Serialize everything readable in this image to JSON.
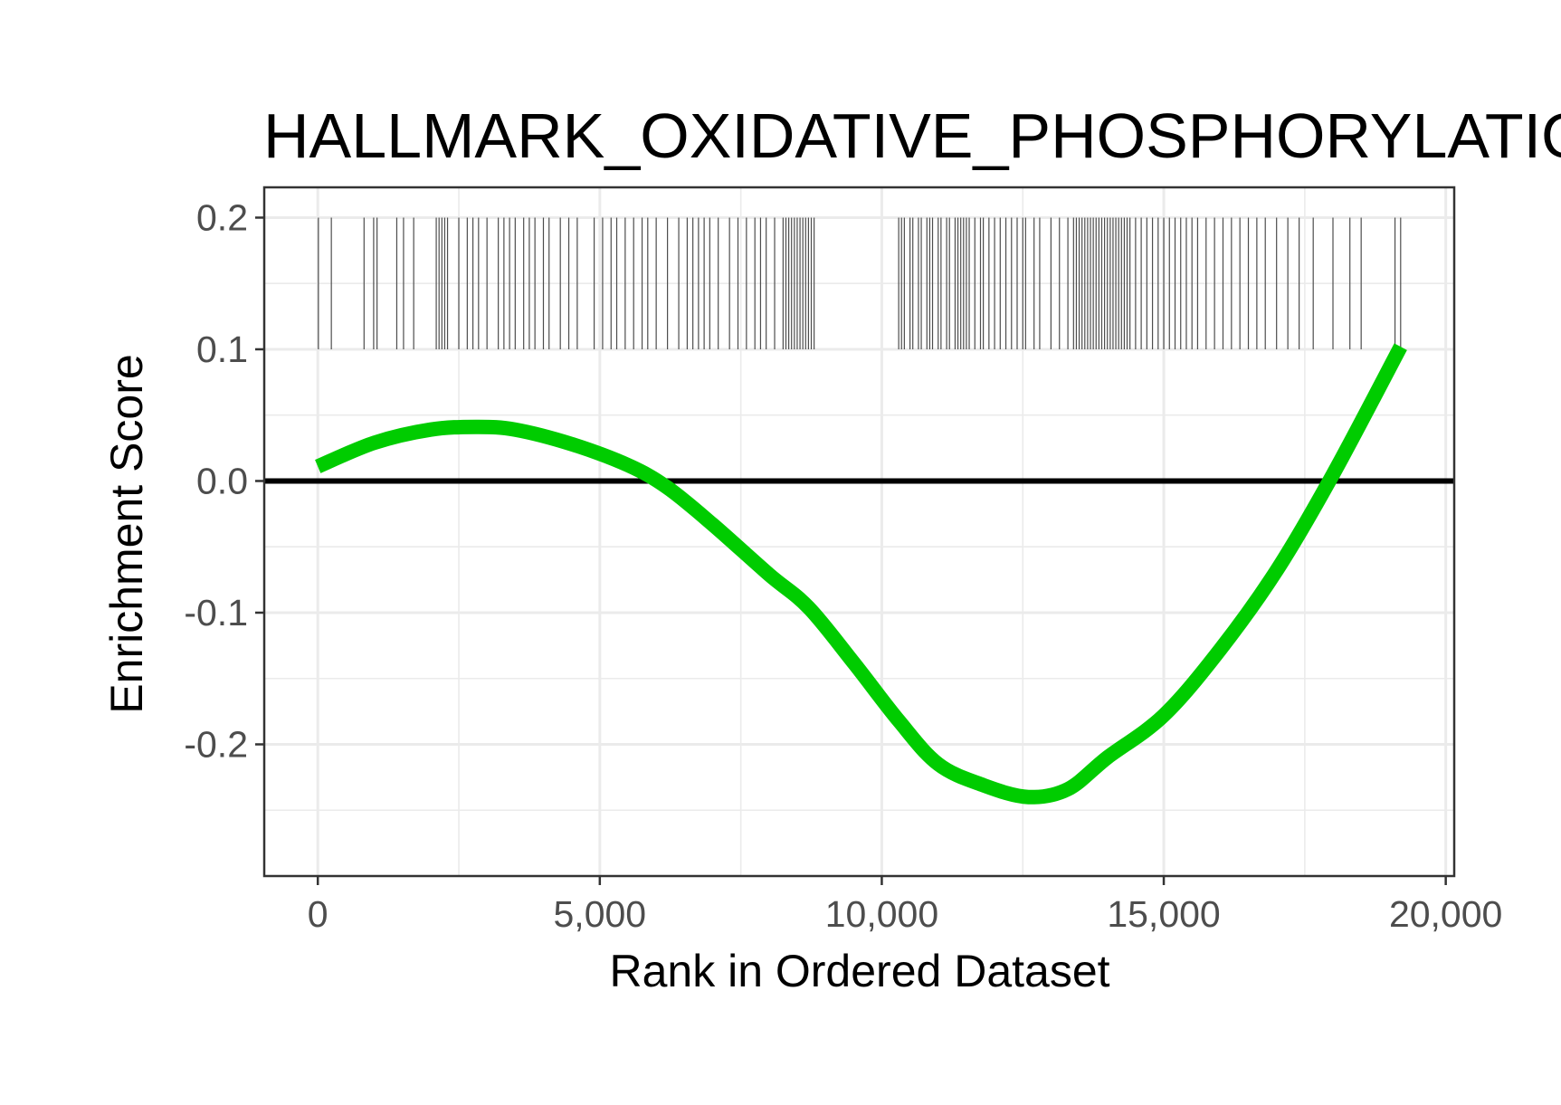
{
  "chart_data": {
    "type": "line",
    "title": "HALLMARK_OXIDATIVE_PHOSPHORYLATION",
    "xlabel": "Rank in Ordered Dataset",
    "ylabel": "Enrichment Score",
    "xlim": [
      -950,
      20150
    ],
    "ylim": [
      -0.3,
      0.223
    ],
    "x_ticks": [
      0,
      5000,
      10000,
      15000,
      20000
    ],
    "x_tick_labels": [
      "0",
      "5,000",
      "10,000",
      "15,000",
      "20,000"
    ],
    "y_ticks": [
      -0.2,
      -0.1,
      0.0,
      0.1,
      0.2
    ],
    "y_tick_labels": [
      "-0.2",
      "-0.1",
      "0.0",
      "0.1",
      "0.2"
    ],
    "grid": true,
    "reference_line_y": 0.0,
    "colors": {
      "curve": "#00cc00",
      "zero_line": "#000000",
      "hits": "#4d4d4d",
      "grid": "#ebebeb",
      "panel_border": "#333333"
    },
    "series": [
      {
        "x": [
          0,
          1000,
          2000,
          2800,
          3500,
          4500,
          5500,
          6200,
          7000,
          8000,
          8700,
          9500,
          10300,
          11000,
          11800,
          12600,
          13300,
          14000,
          15000,
          16000,
          17000,
          18000,
          19200
        ],
        "y": [
          0.011,
          0.029,
          0.039,
          0.041,
          0.039,
          0.028,
          0.012,
          -0.005,
          -0.033,
          -0.071,
          -0.096,
          -0.138,
          -0.182,
          -0.215,
          -0.231,
          -0.24,
          -0.234,
          -0.21,
          -0.178,
          -0.128,
          -0.068,
          0.005,
          0.102
        ]
      }
    ],
    "gene_hits": {
      "y_range": [
        0.1,
        0.2
      ],
      "x": [
        10,
        240,
        820,
        990,
        1050,
        1400,
        1520,
        1700,
        2100,
        2150,
        2200,
        2250,
        2300,
        2500,
        2650,
        2750,
        2850,
        3000,
        3200,
        3300,
        3400,
        3500,
        3650,
        3750,
        3850,
        4000,
        4100,
        4300,
        4450,
        4600,
        4900,
        5050,
        5200,
        5300,
        5450,
        5600,
        5750,
        5850,
        6000,
        6200,
        6400,
        6550,
        6650,
        6750,
        6850,
        6950,
        7100,
        7300,
        7450,
        7600,
        7750,
        7850,
        7950,
        8100,
        8250,
        8300,
        8350,
        8400,
        8450,
        8500,
        8550,
        8600,
        8650,
        8700,
        8750,
        8800,
        10300,
        10350,
        10400,
        10500,
        10550,
        10650,
        10700,
        10800,
        10850,
        10900,
        11000,
        11050,
        11150,
        11200,
        11300,
        11350,
        11400,
        11450,
        11500,
        11550,
        11650,
        11750,
        11800,
        11900,
        12000,
        12100,
        12200,
        12300,
        12400,
        12500,
        12550,
        12700,
        12800,
        13000,
        13150,
        13300,
        13400,
        13450,
        13500,
        13550,
        13600,
        13650,
        13700,
        13750,
        13800,
        13850,
        13900,
        13950,
        14000,
        14050,
        14100,
        14150,
        14200,
        14250,
        14300,
        14350,
        14400,
        14500,
        14600,
        14700,
        14800,
        14900,
        15000,
        15100,
        15200,
        15300,
        15400,
        15500,
        15600,
        15750,
        15900,
        16050,
        16200,
        16350,
        16500,
        16650,
        16800,
        17000,
        17200,
        17400,
        17650,
        18000,
        18300,
        18500,
        19100,
        19200
      ]
    }
  }
}
